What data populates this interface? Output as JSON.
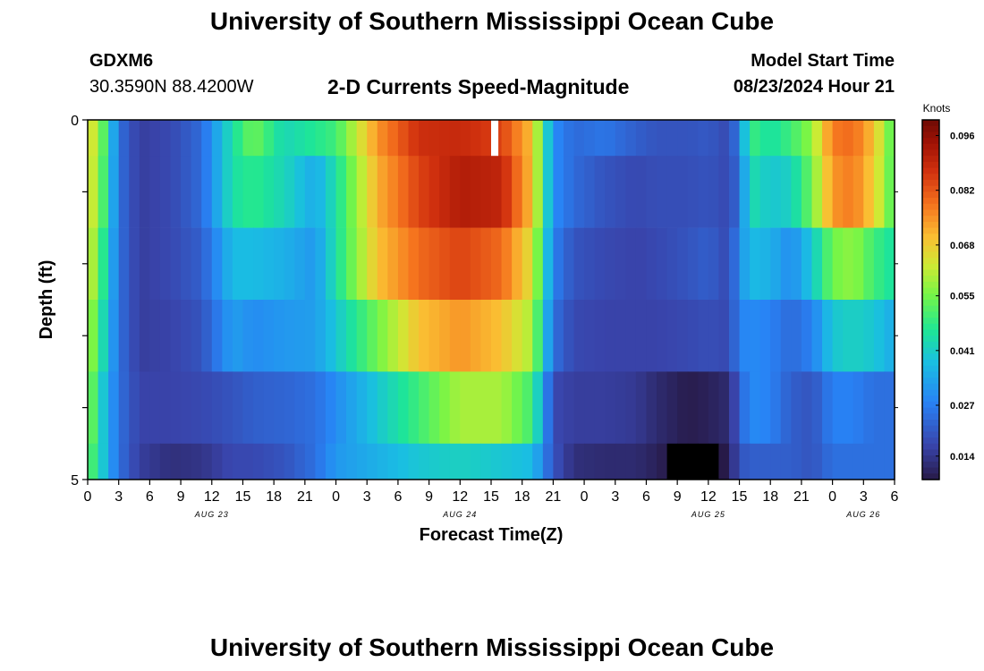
{
  "header": {
    "title": "University of Southern Mississippi Ocean Cube",
    "station": "GDXM6",
    "coordinates": "30.3590N  88.4200W",
    "subtitle": "2-D Currents Speed-Magnitude",
    "model_start_label": "Model Start Time",
    "model_start_value": "08/23/2024 Hour 21"
  },
  "footer": {
    "title": "University of Southern Mississippi Ocean Cube"
  },
  "chart_data": {
    "type": "heatmap",
    "title": "2-D Currents Speed-Magnitude",
    "xlabel": "Forecast Time(Z)",
    "ylabel": "Depth (ft)",
    "x_ticks": [
      "0",
      "3",
      "6",
      "9",
      "12",
      "15",
      "18",
      "21",
      "0",
      "3",
      "6",
      "9",
      "12",
      "15",
      "18",
      "21",
      "0",
      "3",
      "6",
      "9",
      "12",
      "15",
      "18",
      "21",
      "0",
      "3",
      "6"
    ],
    "date_labels": [
      {
        "label": "AUG 23",
        "x": 12
      },
      {
        "label": "AUG 24",
        "x": 36
      },
      {
        "label": "AUG 25",
        "x": 60
      },
      {
        "label": "AUG 26",
        "x": 75
      }
    ],
    "x_range": [
      0,
      78
    ],
    "y_range": [
      0,
      5
    ],
    "y_tick_labels": [
      {
        "value": 0,
        "label": "0"
      },
      {
        "value": 5,
        "label": "5"
      }
    ],
    "colorbar": {
      "unit": "Knots",
      "range": [
        0.008,
        0.1
      ],
      "tick_values": [
        0.096,
        0.082,
        0.068,
        0.055,
        0.041,
        0.027,
        0.014
      ],
      "tick_labels": [
        "0.096",
        "0.082",
        "0.068",
        "0.055",
        "0.041",
        "0.027",
        "0.014"
      ]
    },
    "keypoints_hours": [
      0,
      1,
      3,
      5,
      8,
      11,
      14,
      16,
      19,
      22,
      24,
      28,
      32,
      36,
      40,
      43,
      45,
      47,
      50,
      53,
      55,
      58,
      60,
      62,
      63,
      64,
      66,
      68,
      70,
      72,
      74,
      76,
      78
    ],
    "rows": [
      {
        "depth_range": [
          0,
          0.5
        ],
        "keyvalues": [
          0.065,
          0.062,
          0.025,
          0.016,
          0.018,
          0.024,
          0.045,
          0.055,
          0.043,
          0.047,
          0.05,
          0.075,
          0.088,
          0.089,
          0.085,
          0.07,
          0.03,
          0.024,
          0.026,
          0.022,
          0.02,
          0.02,
          0.021,
          0.018,
          0.028,
          0.05,
          0.045,
          0.05,
          0.058,
          0.078,
          0.08,
          0.07,
          0.05
        ]
      },
      {
        "depth_range": [
          0.5,
          1.5
        ],
        "keyvalues": [
          0.065,
          0.06,
          0.025,
          0.016,
          0.018,
          0.024,
          0.045,
          0.048,
          0.043,
          0.035,
          0.045,
          0.072,
          0.085,
          0.092,
          0.09,
          0.07,
          0.03,
          0.024,
          0.02,
          0.018,
          0.019,
          0.019,
          0.02,
          0.018,
          0.025,
          0.045,
          0.04,
          0.042,
          0.055,
          0.075,
          0.078,
          0.068,
          0.05
        ]
      },
      {
        "depth_range": [
          1.5,
          2.5
        ],
        "keyvalues": [
          0.065,
          0.055,
          0.025,
          0.016,
          0.018,
          0.022,
          0.038,
          0.038,
          0.036,
          0.032,
          0.045,
          0.07,
          0.08,
          0.085,
          0.08,
          0.065,
          0.028,
          0.02,
          0.018,
          0.017,
          0.018,
          0.02,
          0.022,
          0.018,
          0.03,
          0.038,
          0.036,
          0.03,
          0.04,
          0.055,
          0.058,
          0.05,
          0.045
        ]
      },
      {
        "depth_range": [
          2.5,
          3.5
        ],
        "keyvalues": [
          0.062,
          0.05,
          0.025,
          0.016,
          0.017,
          0.02,
          0.033,
          0.03,
          0.032,
          0.033,
          0.04,
          0.055,
          0.07,
          0.075,
          0.07,
          0.06,
          0.025,
          0.018,
          0.017,
          0.017,
          0.017,
          0.018,
          0.019,
          0.018,
          0.028,
          0.03,
          0.028,
          0.024,
          0.028,
          0.04,
          0.042,
          0.04,
          0.035
        ]
      },
      {
        "depth_range": [
          3.5,
          4.5
        ],
        "keyvalues": [
          0.06,
          0.045,
          0.025,
          0.017,
          0.017,
          0.018,
          0.02,
          0.022,
          0.023,
          0.025,
          0.03,
          0.04,
          0.05,
          0.06,
          0.06,
          0.05,
          0.018,
          0.016,
          0.016,
          0.015,
          0.012,
          0.009,
          0.01,
          0.012,
          0.022,
          0.03,
          0.028,
          0.022,
          0.02,
          0.028,
          0.028,
          0.025,
          0.025
        ]
      },
      {
        "depth_range": [
          4.5,
          5
        ],
        "keyvalues": [
          0.055,
          0.045,
          0.025,
          0.016,
          0.013,
          0.014,
          0.018,
          0.018,
          0.02,
          0.025,
          0.032,
          0.036,
          0.04,
          0.042,
          0.04,
          0.038,
          0.02,
          0.013,
          0.012,
          0.012,
          0.01,
          0.006,
          0.004,
          0.01,
          0.02,
          0.022,
          0.022,
          0.022,
          0.02,
          0.025,
          0.025,
          0.025,
          0.025
        ]
      }
    ],
    "missing_cells": [
      {
        "hour": 39,
        "depth_range": [
          0,
          0.5
        ]
      }
    ]
  }
}
